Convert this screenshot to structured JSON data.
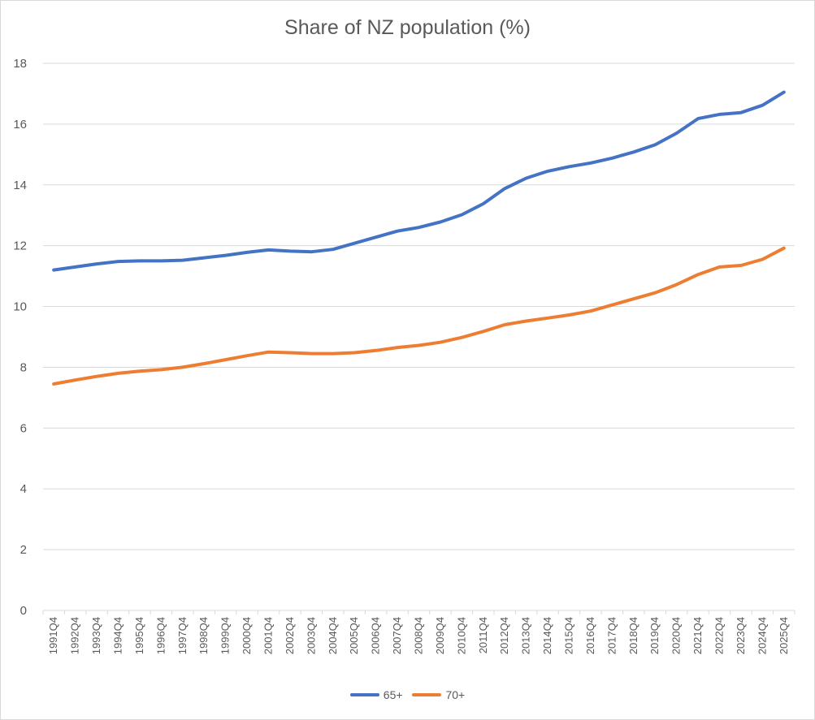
{
  "chart_data": {
    "type": "line",
    "title": "Share of NZ population (%)",
    "xlabel": "",
    "ylabel": "",
    "ylim": [
      0,
      18
    ],
    "yticks": [
      0,
      2,
      4,
      6,
      8,
      10,
      12,
      14,
      16,
      18
    ],
    "grid": "horizontal",
    "legend_position": "bottom",
    "x": [
      "1991Q4",
      "1992Q4",
      "1993Q4",
      "1994Q4",
      "1995Q4",
      "1996Q4",
      "1997Q4",
      "1998Q4",
      "1999Q4",
      "2000Q4",
      "2001Q4",
      "2002Q4",
      "2003Q4",
      "2004Q4",
      "2005Q4",
      "2006Q4",
      "2007Q4",
      "2008Q4",
      "2009Q4",
      "2010Q4",
      "2011Q4",
      "2012Q4",
      "2013Q4",
      "2014Q4",
      "2015Q4",
      "2016Q4",
      "2017Q4",
      "2018Q4",
      "2019Q4",
      "2020Q4",
      "2021Q4",
      "2022Q4",
      "2023Q4",
      "2024Q4",
      "2025Q4"
    ],
    "series": [
      {
        "name": "65+",
        "color": "#4472c4",
        "values": [
          11.2,
          11.3,
          11.4,
          11.48,
          11.5,
          11.5,
          11.52,
          11.6,
          11.68,
          11.78,
          11.86,
          11.82,
          11.8,
          11.88,
          12.08,
          12.28,
          12.48,
          12.6,
          12.78,
          13.02,
          13.38,
          13.88,
          14.22,
          14.45,
          14.6,
          14.72,
          14.88,
          15.08,
          15.32,
          15.7,
          16.18,
          16.32,
          16.38,
          16.62,
          17.05
        ]
      },
      {
        "name": "70+",
        "color": "#ed7d31",
        "values": [
          7.45,
          7.58,
          7.7,
          7.8,
          7.87,
          7.92,
          8.0,
          8.12,
          8.25,
          8.38,
          8.5,
          8.48,
          8.45,
          8.45,
          8.48,
          8.55,
          8.65,
          8.72,
          8.82,
          8.98,
          9.18,
          9.4,
          9.52,
          9.62,
          9.72,
          9.85,
          10.05,
          10.25,
          10.45,
          10.72,
          11.05,
          11.3,
          11.35,
          11.55,
          11.92
        ]
      }
    ]
  }
}
